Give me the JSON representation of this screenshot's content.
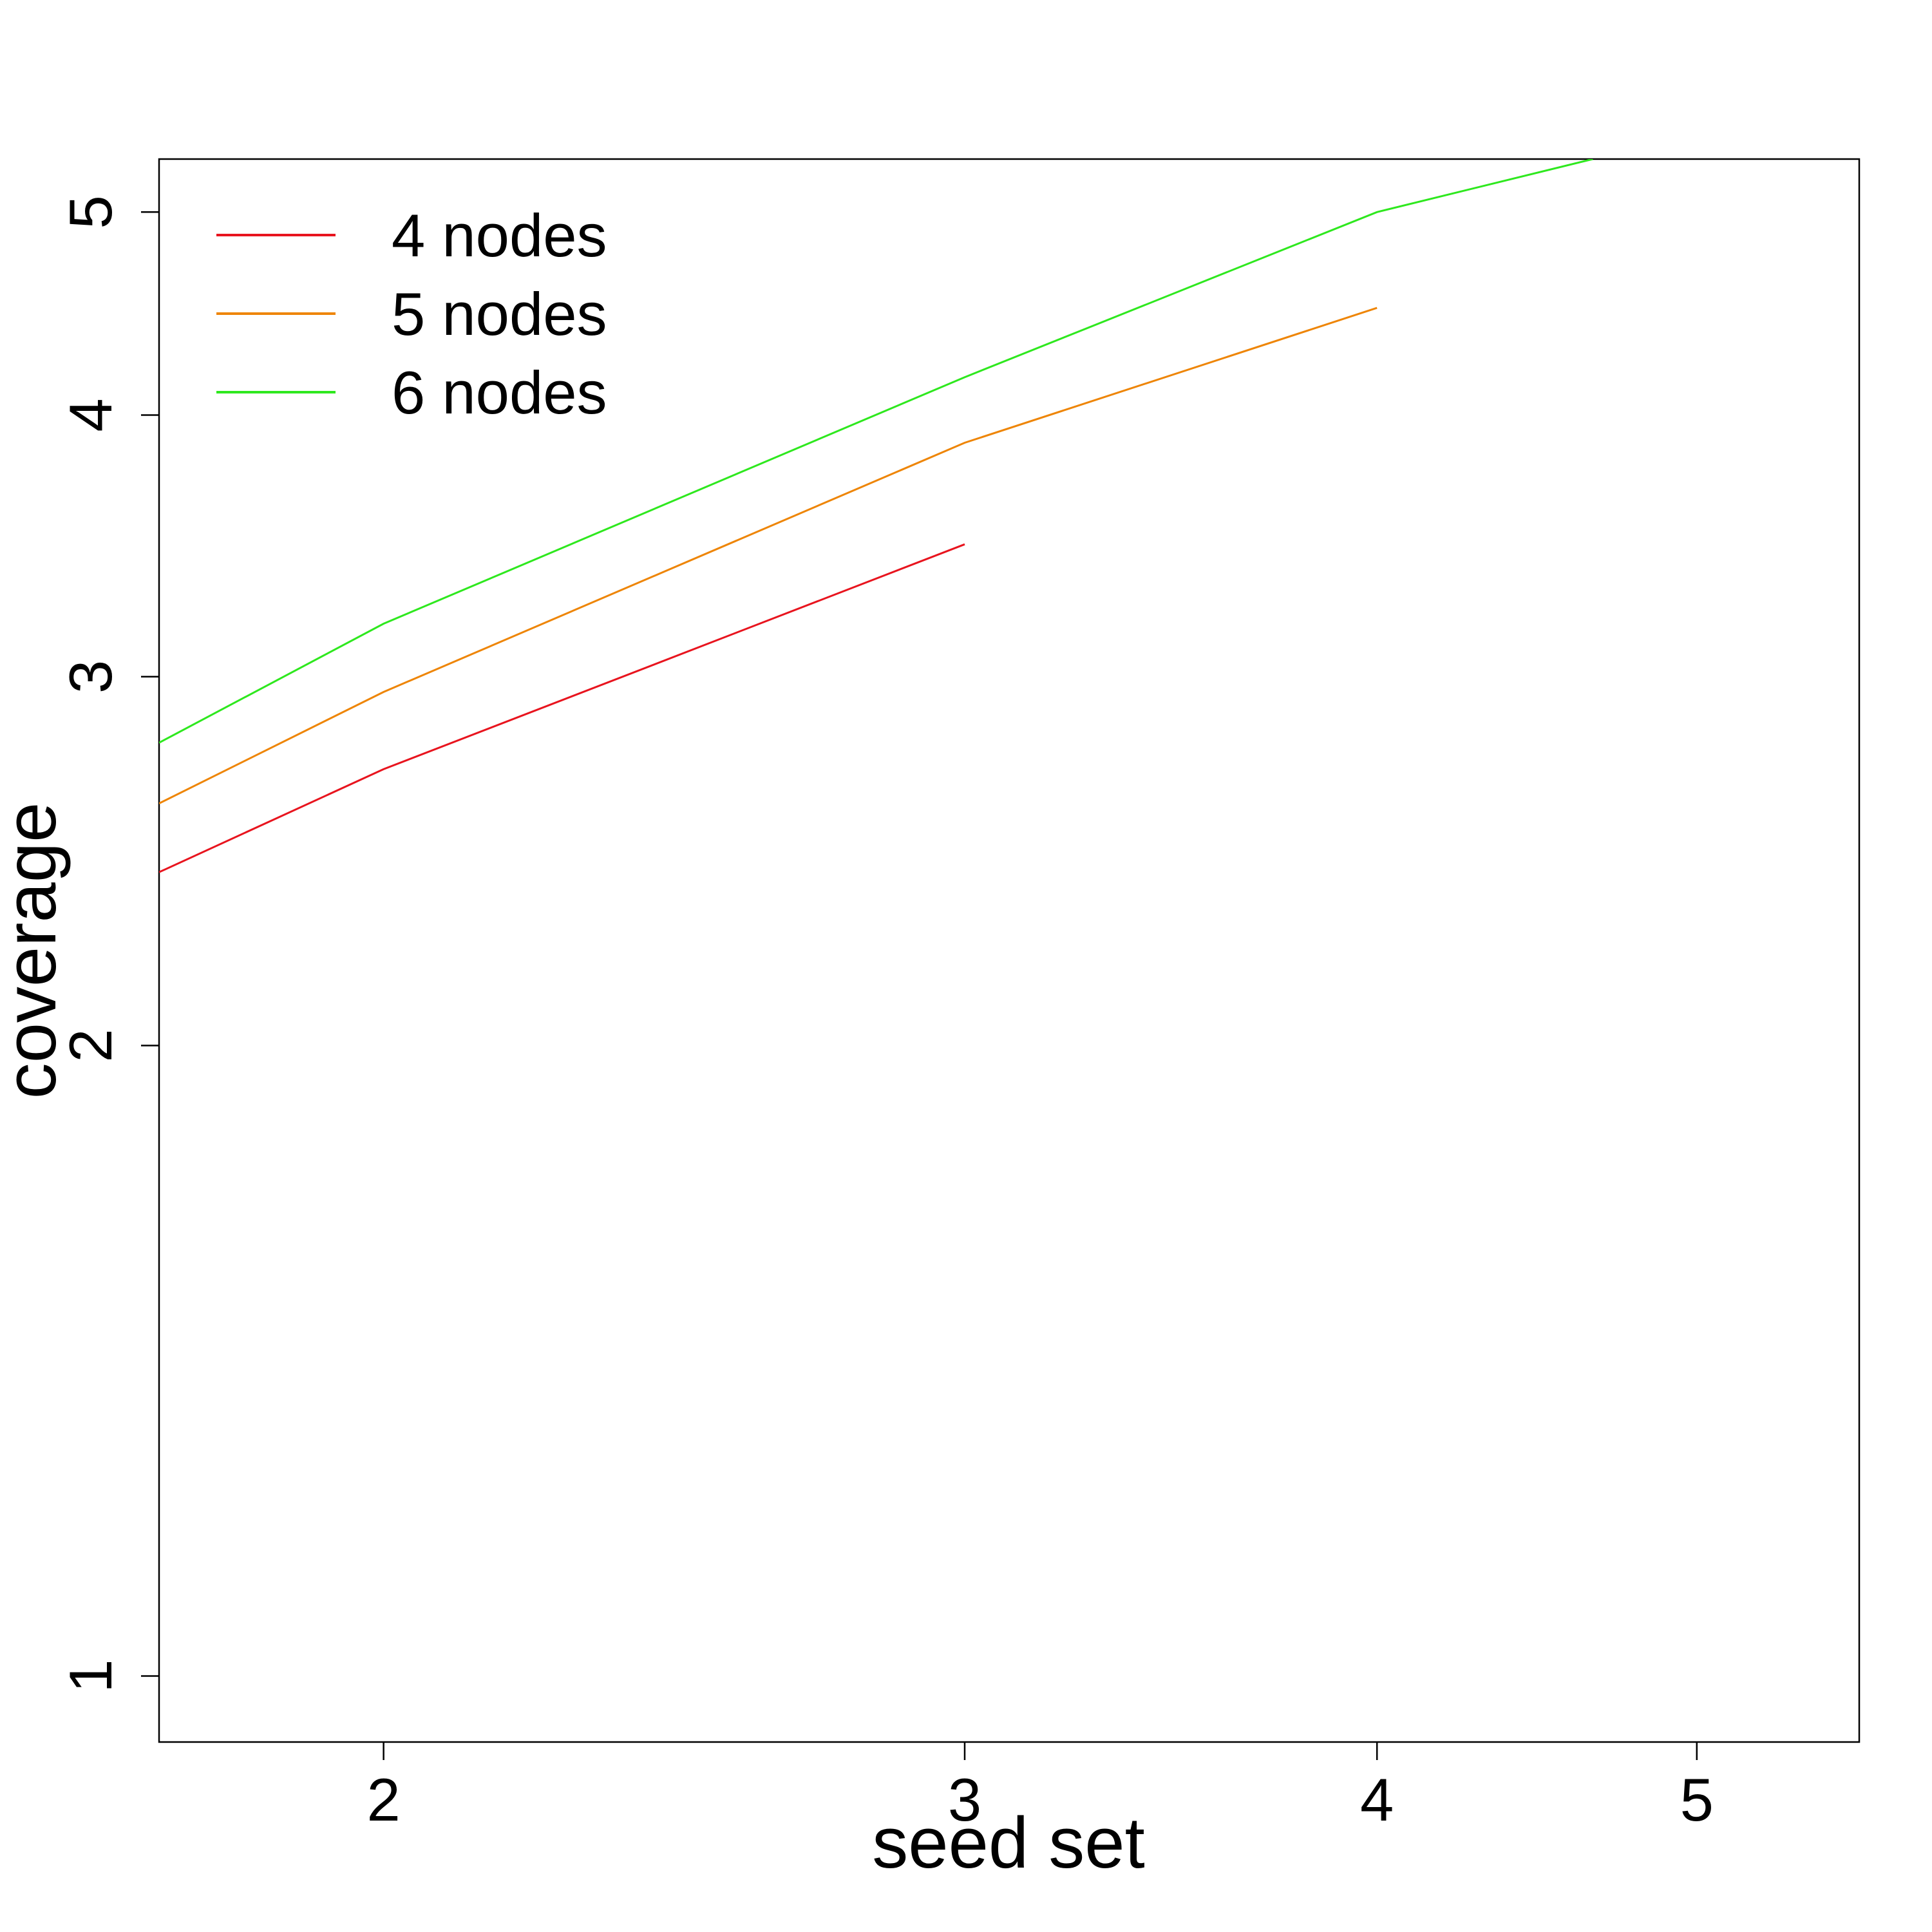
{
  "chart_data": {
    "type": "line",
    "xlabel": "seed set",
    "ylabel": "coverage",
    "x_scale": "log",
    "y_scale": "log",
    "xlim": [
      1.71,
      5.6
    ],
    "ylim": [
      0.93,
      5.3
    ],
    "x_ticks": [
      2,
      3,
      4,
      5
    ],
    "y_ticks": [
      1,
      2,
      3,
      4,
      5
    ],
    "grid": false,
    "legend_position": "top-left",
    "series": [
      {
        "name": "4 nodes",
        "color": "#e8141e",
        "x": [
          1.71,
          2,
          3
        ],
        "y": [
          2.42,
          2.71,
          3.47
        ]
      },
      {
        "name": "5 nodes",
        "color": "#ee8506",
        "x": [
          1.71,
          2,
          3,
          4
        ],
        "y": [
          2.61,
          2.95,
          3.88,
          4.5
        ]
      },
      {
        "name": "6 nodes",
        "color": "#2ee81e",
        "x": [
          1.71,
          2,
          3,
          4,
          4.65
        ],
        "y": [
          2.79,
          3.18,
          4.17,
          5.0,
          5.3
        ]
      }
    ]
  }
}
